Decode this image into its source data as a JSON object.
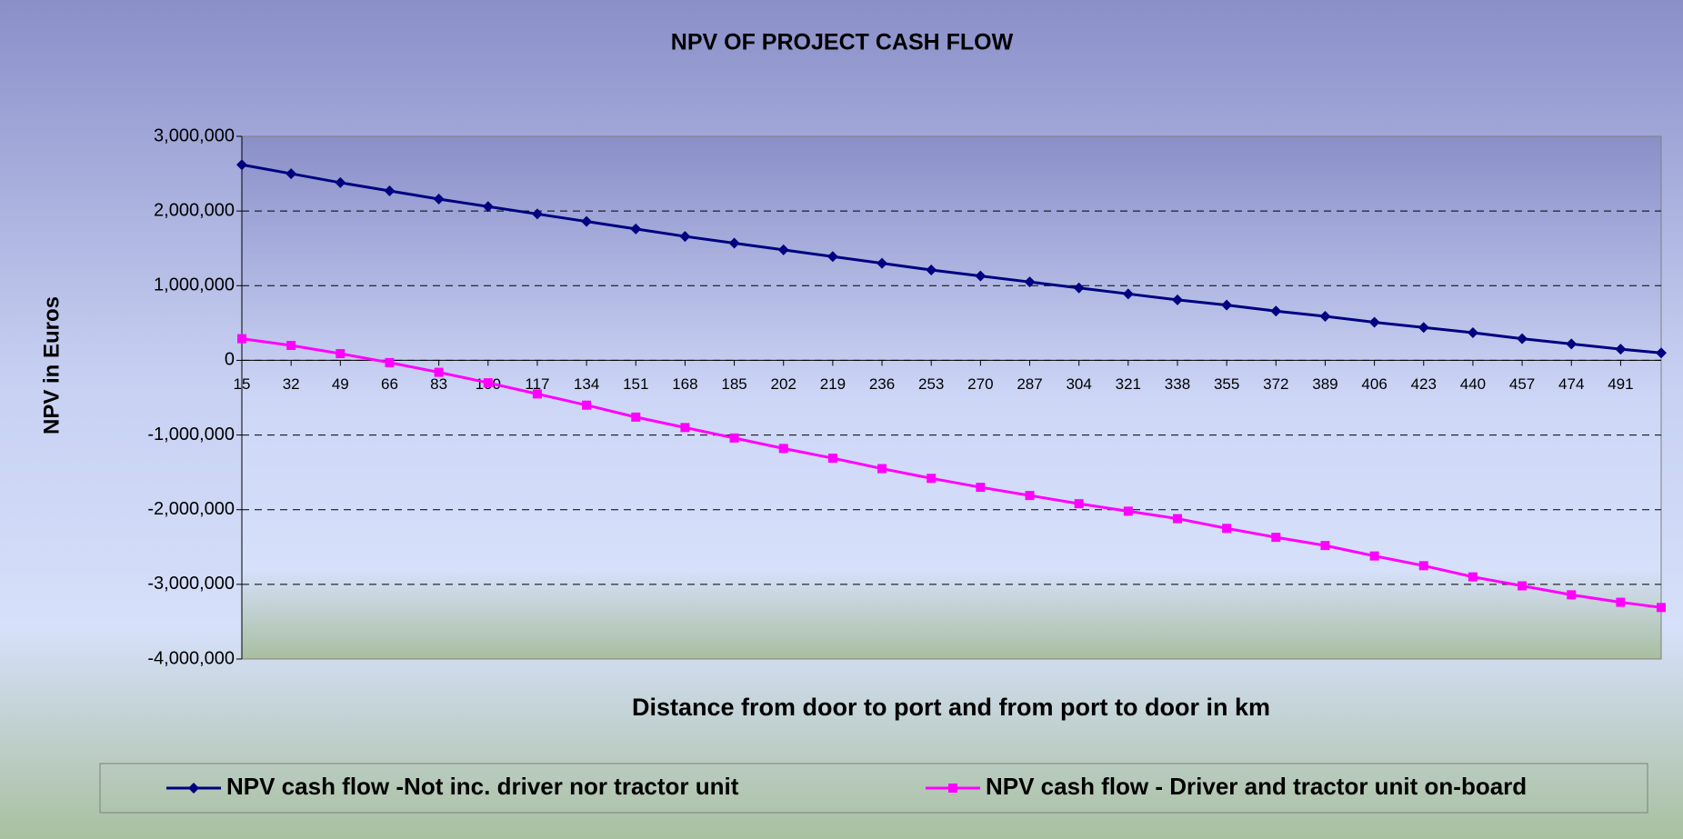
{
  "chart_data": {
    "type": "line",
    "title": "NPV OF PROJECT CASH FLOW",
    "x_label": "Distance from door to port and from port to door in km",
    "y_label": "NPV in Euros",
    "x": [
      15,
      32,
      49,
      66,
      83,
      100,
      117,
      134,
      151,
      168,
      185,
      202,
      219,
      236,
      253,
      270,
      287,
      304,
      321,
      338,
      355,
      372,
      389,
      406,
      423,
      440,
      457,
      474,
      491,
      505
    ],
    "series": [
      {
        "name": "NPV cash flow -Not inc. driver nor tractor unit",
        "color": "#000080",
        "marker": "diamond",
        "values": [
          2620000,
          2500000,
          2380000,
          2270000,
          2160000,
          2060000,
          1960000,
          1860000,
          1760000,
          1660000,
          1570000,
          1480000,
          1390000,
          1300000,
          1210000,
          1130000,
          1050000,
          970000,
          890000,
          810000,
          740000,
          660000,
          590000,
          510000,
          440000,
          370000,
          290000,
          220000,
          150000,
          100000
        ]
      },
      {
        "name": "NPV cash flow - Driver and tractor unit on-board",
        "color": "#ff00ff",
        "marker": "square",
        "values": [
          290000,
          200000,
          90000,
          -30000,
          -160000,
          -300000,
          -450000,
          -600000,
          -760000,
          -900000,
          -1040000,
          -1180000,
          -1310000,
          -1450000,
          -1580000,
          -1700000,
          -1810000,
          -1920000,
          -2020000,
          -2120000,
          -2250000,
          -2370000,
          -2480000,
          -2620000,
          -2750000,
          -2900000,
          -3020000,
          -3140000,
          -3240000,
          -3310000
        ]
      }
    ],
    "xlim": [
      15,
      505
    ],
    "xticks": [
      15,
      32,
      49,
      66,
      83,
      100,
      117,
      134,
      151,
      168,
      185,
      202,
      219,
      236,
      253,
      270,
      287,
      304,
      321,
      338,
      355,
      372,
      389,
      406,
      423,
      440,
      457,
      474,
      491
    ],
    "ylim": [
      -4000000,
      3000000
    ],
    "yticks": [
      {
        "value": -4000000,
        "label": "-4,000,000"
      },
      {
        "value": -3000000,
        "label": "-3,000,000"
      },
      {
        "value": -2000000,
        "label": "-2,000,000"
      },
      {
        "value": -1000000,
        "label": "-1,000,000"
      },
      0,
      {
        "value": 1000000,
        "label": "1,000,000"
      },
      {
        "value": 2000000,
        "label": "2,000,000"
      },
      {
        "value": 3000000,
        "label": "3,000,000"
      }
    ],
    "grid": true,
    "legend": "bottom"
  }
}
